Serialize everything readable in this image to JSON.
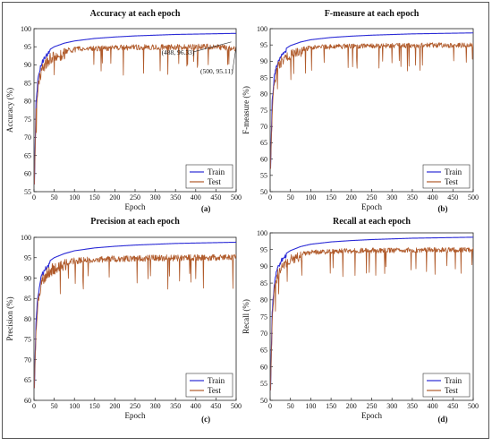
{
  "chart_data": [
    {
      "type": "line",
      "title": "Accuracy at each epoch",
      "xlabel": "Epoch",
      "ylabel": "Accuracy (%)",
      "panel_label": "(a)",
      "xlim": [
        0,
        500
      ],
      "ylim": [
        55,
        100
      ],
      "xticks": [
        0,
        50,
        100,
        150,
        200,
        250,
        300,
        350,
        400,
        450,
        500
      ],
      "yticks": [
        55,
        60,
        65,
        70,
        75,
        80,
        85,
        90,
        95,
        100
      ],
      "legend_position": "bottom-right",
      "grid": false,
      "series": [
        {
          "name": "Train",
          "color": "#2b2bd6",
          "x": [
            1,
            5,
            10,
            15,
            20,
            30,
            40,
            50,
            75,
            100,
            150,
            200,
            250,
            300,
            350,
            400,
            450,
            500
          ],
          "values": [
            57,
            80,
            86.5,
            89.5,
            91.3,
            93.2,
            94.3,
            95.0,
            96.0,
            96.6,
            97.3,
            97.7,
            98.0,
            98.2,
            98.4,
            98.5,
            98.6,
            98.7
          ]
        },
        {
          "name": "Test",
          "color": "#b05a2a",
          "x": [
            1,
            5,
            10,
            15,
            20,
            30,
            40,
            50,
            75,
            100,
            150,
            200,
            250,
            300,
            350,
            400,
            450,
            500
          ],
          "values": [
            57,
            78,
            85,
            88.5,
            90.3,
            92.1,
            93.2,
            93.8,
            94.6,
            95.0,
            95.3,
            95.5,
            95.6,
            95.7,
            95.7,
            95.8,
            95.8,
            95.11
          ]
        }
      ],
      "annotations": [
        {
          "text": "(488, 96.33)",
          "x": 488,
          "y": 96.33
        },
        {
          "text": "(500, 95.11)",
          "x": 500,
          "y": 95.11
        }
      ]
    },
    {
      "type": "line",
      "title": "F-measure at each epoch",
      "xlabel": "Epoch",
      "ylabel": "F-measure (%)",
      "panel_label": "(b)",
      "xlim": [
        0,
        500
      ],
      "ylim": [
        50,
        100
      ],
      "xticks": [
        0,
        50,
        100,
        150,
        200,
        250,
        300,
        350,
        400,
        450,
        500
      ],
      "yticks": [
        50,
        55,
        60,
        65,
        70,
        75,
        80,
        85,
        90,
        95,
        100
      ],
      "legend_position": "bottom-right",
      "grid": false,
      "series": [
        {
          "name": "Train",
          "color": "#2b2bd6",
          "x": [
            1,
            5,
            10,
            15,
            20,
            30,
            40,
            50,
            75,
            100,
            150,
            200,
            250,
            300,
            350,
            400,
            450,
            500
          ],
          "values": [
            57,
            78,
            85.5,
            88.8,
            90.8,
            92.8,
            94.0,
            94.8,
            95.9,
            96.6,
            97.3,
            97.7,
            98.0,
            98.2,
            98.4,
            98.5,
            98.6,
            98.7
          ]
        },
        {
          "name": "Test",
          "color": "#b05a2a",
          "x": [
            1,
            5,
            10,
            15,
            20,
            30,
            40,
            50,
            75,
            100,
            150,
            200,
            250,
            300,
            350,
            400,
            450,
            500
          ],
          "values": [
            57,
            76,
            84,
            87.8,
            89.8,
            91.8,
            92.9,
            93.6,
            94.4,
            94.9,
            95.2,
            95.4,
            95.5,
            95.6,
            95.6,
            95.7,
            95.7,
            95.7
          ]
        }
      ]
    },
    {
      "type": "line",
      "title": "Precision at each epoch",
      "xlabel": "Epoch",
      "ylabel": "Precision (%)",
      "panel_label": "(c)",
      "xlim": [
        0,
        500
      ],
      "ylim": [
        60,
        100
      ],
      "xticks": [
        0,
        50,
        100,
        150,
        200,
        250,
        300,
        350,
        400,
        450,
        500
      ],
      "yticks": [
        60,
        65,
        70,
        75,
        80,
        85,
        90,
        95,
        100
      ],
      "legend_position": "bottom-right",
      "grid": false,
      "series": [
        {
          "name": "Train",
          "color": "#2b2bd6",
          "x": [
            1,
            5,
            10,
            15,
            20,
            30,
            40,
            50,
            75,
            100,
            150,
            200,
            250,
            300,
            350,
            400,
            450,
            500
          ],
          "values": [
            63,
            80,
            86.5,
            89.5,
            91.3,
            93.2,
            94.3,
            95.0,
            96.0,
            96.7,
            97.4,
            97.8,
            98.1,
            98.3,
            98.5,
            98.6,
            98.7,
            98.8
          ]
        },
        {
          "name": "Test",
          "color": "#b05a2a",
          "x": [
            1,
            5,
            10,
            15,
            20,
            30,
            40,
            50,
            75,
            100,
            150,
            200,
            250,
            300,
            350,
            400,
            450,
            500
          ],
          "values": [
            63,
            79,
            85.5,
            88.8,
            90.6,
            92.3,
            93.3,
            93.9,
            94.6,
            95.0,
            95.3,
            95.5,
            95.6,
            95.7,
            95.7,
            95.8,
            95.8,
            95.8
          ]
        }
      ]
    },
    {
      "type": "line",
      "title": "Recall at each epoch",
      "xlabel": "Epoch",
      "ylabel": "Recall (%)",
      "panel_label": "(d)",
      "xlim": [
        0,
        500
      ],
      "ylim": [
        50,
        100
      ],
      "xticks": [
        0,
        50,
        100,
        150,
        200,
        250,
        300,
        350,
        400,
        450,
        500
      ],
      "yticks": [
        50,
        55,
        60,
        65,
        70,
        75,
        80,
        85,
        90,
        95,
        100
      ],
      "legend_position": "bottom-right",
      "grid": false,
      "series": [
        {
          "name": "Train",
          "color": "#2b2bd6",
          "x": [
            1,
            5,
            10,
            15,
            20,
            30,
            40,
            50,
            75,
            100,
            150,
            200,
            250,
            300,
            350,
            400,
            450,
            500
          ],
          "values": [
            53,
            77,
            85,
            88.5,
            90.6,
            92.7,
            93.9,
            94.7,
            95.9,
            96.6,
            97.3,
            97.7,
            98.0,
            98.2,
            98.4,
            98.5,
            98.6,
            98.7
          ]
        },
        {
          "name": "Test",
          "color": "#b05a2a",
          "x": [
            1,
            5,
            10,
            15,
            20,
            30,
            40,
            50,
            75,
            100,
            150,
            200,
            250,
            300,
            350,
            400,
            450,
            500
          ],
          "values": [
            53,
            75,
            83.5,
            87.5,
            89.6,
            91.7,
            92.9,
            93.6,
            94.4,
            94.9,
            95.2,
            95.4,
            95.5,
            95.6,
            95.6,
            95.7,
            95.7,
            95.7
          ]
        }
      ]
    }
  ]
}
